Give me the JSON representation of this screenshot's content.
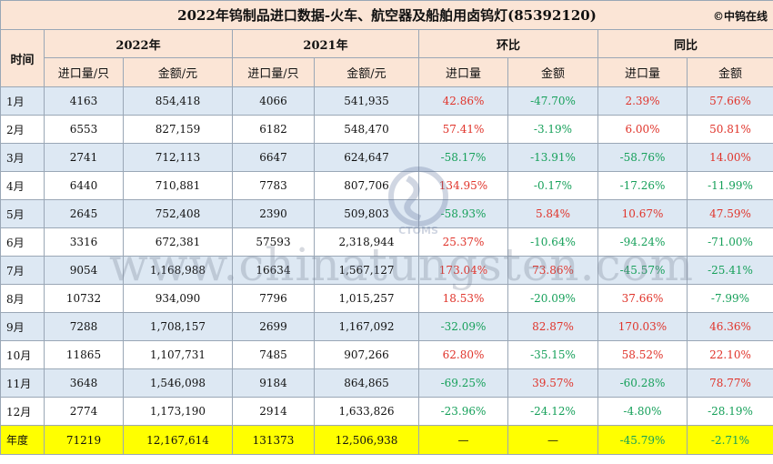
{
  "title": "2022年钨制品进口数据-火车、航空器及船舶用卤钨灯(85392120)",
  "credit": "©中钨在线",
  "headers": {
    "time": "时间",
    "year_2022": "2022年",
    "year_2021": "2021年",
    "mom": "环比",
    "yoy": "同比",
    "qty_per_unit": "进口量/只",
    "amount_yuan": "金额/元",
    "qty": "进口量",
    "amount": "金额"
  },
  "rows": [
    {
      "month": "1月",
      "q2022": "4163",
      "a2022": "854,418",
      "q2021": "4066",
      "a2021": "541,935",
      "mom_q": "42.86%",
      "mom_a": "-47.70%",
      "yoy_q": "2.39%",
      "yoy_a": "57.66%"
    },
    {
      "month": "2月",
      "q2022": "6553",
      "a2022": "827,159",
      "q2021": "6182",
      "a2021": "548,470",
      "mom_q": "57.41%",
      "mom_a": "-3.19%",
      "yoy_q": "6.00%",
      "yoy_a": "50.81%"
    },
    {
      "month": "3月",
      "q2022": "2741",
      "a2022": "712,113",
      "q2021": "6647",
      "a2021": "624,647",
      "mom_q": "-58.17%",
      "mom_a": "-13.91%",
      "yoy_q": "-58.76%",
      "yoy_a": "14.00%"
    },
    {
      "month": "4月",
      "q2022": "6440",
      "a2022": "710,881",
      "q2021": "7783",
      "a2021": "807,706",
      "mom_q": "134.95%",
      "mom_a": "-0.17%",
      "yoy_q": "-17.26%",
      "yoy_a": "-11.99%"
    },
    {
      "month": "5月",
      "q2022": "2645",
      "a2022": "752,408",
      "q2021": "2390",
      "a2021": "509,803",
      "mom_q": "-58.93%",
      "mom_a": "5.84%",
      "yoy_q": "10.67%",
      "yoy_a": "47.59%"
    },
    {
      "month": "6月",
      "q2022": "3316",
      "a2022": "672,381",
      "q2021": "57593",
      "a2021": "2,318,944",
      "mom_q": "25.37%",
      "mom_a": "-10.64%",
      "yoy_q": "-94.24%",
      "yoy_a": "-71.00%"
    },
    {
      "month": "7月",
      "q2022": "9054",
      "a2022": "1,168,988",
      "q2021": "16634",
      "a2021": "1,567,127",
      "mom_q": "173.04%",
      "mom_a": "73.86%",
      "yoy_q": "-45.57%",
      "yoy_a": "-25.41%"
    },
    {
      "month": "8月",
      "q2022": "10732",
      "a2022": "934,090",
      "q2021": "7796",
      "a2021": "1,015,257",
      "mom_q": "18.53%",
      "mom_a": "-20.09%",
      "yoy_q": "37.66%",
      "yoy_a": "-7.99%"
    },
    {
      "month": "9月",
      "q2022": "7288",
      "a2022": "1,708,157",
      "q2021": "2699",
      "a2021": "1,167,092",
      "mom_q": "-32.09%",
      "mom_a": "82.87%",
      "yoy_q": "170.03%",
      "yoy_a": "46.36%"
    },
    {
      "month": "10月",
      "q2022": "11865",
      "a2022": "1,107,731",
      "q2021": "7485",
      "a2021": "907,266",
      "mom_q": "62.80%",
      "mom_a": "-35.15%",
      "yoy_q": "58.52%",
      "yoy_a": "22.10%"
    },
    {
      "month": "11月",
      "q2022": "3648",
      "a2022": "1,546,098",
      "q2021": "9184",
      "a2021": "864,865",
      "mom_q": "-69.25%",
      "mom_a": "39.57%",
      "yoy_q": "-60.28%",
      "yoy_a": "78.77%"
    },
    {
      "month": "12月",
      "q2022": "2774",
      "a2022": "1,173,190",
      "q2021": "2914",
      "a2021": "1,633,826",
      "mom_q": "-23.96%",
      "mom_a": "-24.12%",
      "yoy_q": "-4.80%",
      "yoy_a": "-28.19%"
    }
  ],
  "total": {
    "label": "年度",
    "q2022": "71219",
    "a2022": "12,167,614",
    "q2021": "131373",
    "a2021": "12,506,938",
    "mom_q": "—",
    "mom_a": "—",
    "yoy_q": "-45.79%",
    "yoy_a": "-2.71%"
  },
  "watermark": {
    "logo_text": "CTOMS",
    "site": "www.chinatungsten.com"
  },
  "colors": {
    "header_bg": "#fbe5d6",
    "row_alt_bg": "#dde8f3",
    "total_bg": "#ffff00",
    "positive": "#e0342b",
    "negative": "#16a05a"
  }
}
